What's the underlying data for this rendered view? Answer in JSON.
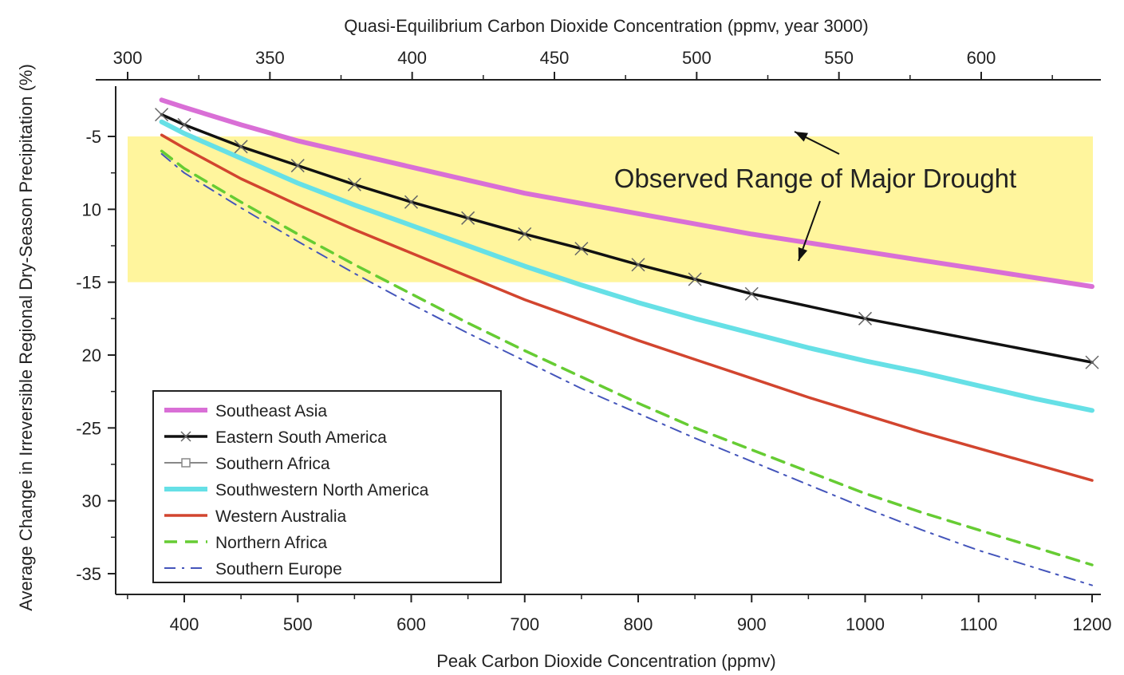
{
  "chart_data": {
    "type": "line",
    "xlabel_bottom": "Peak Carbon Dioxide Concentration (ppmv)",
    "xlabel_top": "Quasi-Equilibrium Carbon Dioxide Concentration (ppmv, year 3000)",
    "ylabel": "Average Change in Irreversible Regional Dry-Season Precipitation (%)",
    "xlim": [
      350,
      1200
    ],
    "ylim": [
      -37,
      -1.5
    ],
    "x_ticks": [
      400,
      500,
      600,
      700,
      800,
      900,
      1000,
      1100,
      1200
    ],
    "x_tick_labels": [
      "400",
      "500",
      "600",
      "700",
      "800",
      "900",
      "1000",
      "1100",
      "1200"
    ],
    "top_axis": {
      "range": [
        300,
        640
      ],
      "ticks": [
        300,
        350,
        400,
        450,
        500,
        550,
        600
      ],
      "tick_labels": [
        "300",
        "350",
        "400",
        "450",
        "500",
        "550",
        "600"
      ]
    },
    "y_ticks": [
      -5,
      -10,
      -15,
      -20,
      -25,
      -30,
      -35
    ],
    "y_tick_labels": [
      "-5",
      "10",
      "-15",
      "20",
      "-25",
      "30",
      "-35"
    ],
    "grid": false,
    "band": {
      "y_range": [
        -15,
        -5
      ],
      "color": "#fff59d",
      "label": "Observed Range of Major Drought"
    },
    "legend_position": "bottom-left",
    "series": [
      {
        "name": "Southeast Asia",
        "color": "#d96fd6",
        "style": "solid",
        "width": "thick",
        "marker": "none",
        "x": [
          380,
          400,
          450,
          500,
          550,
          600,
          650,
          700,
          750,
          800,
          850,
          900,
          950,
          1000,
          1050,
          1100,
          1150,
          1200
        ],
        "y": [
          -2.5,
          -3.0,
          -4.2,
          -5.3,
          -6.2,
          -7.1,
          -8.0,
          -8.9,
          -9.6,
          -10.3,
          -11.0,
          -11.7,
          -12.3,
          -12.9,
          -13.5,
          -14.1,
          -14.7,
          -15.3
        ]
      },
      {
        "name": "Eastern South America",
        "color": "#111111",
        "style": "solid",
        "width": "medium",
        "marker": "x",
        "x": [
          380,
          400,
          450,
          500,
          550,
          600,
          650,
          700,
          750,
          800,
          850,
          900,
          1000,
          1200
        ],
        "y": [
          -3.5,
          -4.2,
          -5.7,
          -7.0,
          -8.3,
          -9.5,
          -10.6,
          -11.7,
          -12.7,
          -13.8,
          -14.8,
          -15.8,
          -17.5,
          -20.5
        ]
      },
      {
        "name": "Southern Africa",
        "color": "#888888",
        "style": "solid",
        "width": "thin",
        "marker": "square",
        "x": [],
        "y": []
      },
      {
        "name": "Southwestern North America",
        "color": "#66e0e6",
        "style": "solid",
        "width": "thick",
        "marker": "none",
        "x": [
          380,
          400,
          450,
          500,
          550,
          600,
          650,
          700,
          750,
          800,
          850,
          900,
          950,
          1000,
          1050,
          1100,
          1150,
          1200
        ],
        "y": [
          -4.0,
          -4.8,
          -6.5,
          -8.2,
          -9.7,
          -11.1,
          -12.5,
          -13.9,
          -15.2,
          -16.4,
          -17.5,
          -18.5,
          -19.5,
          -20.4,
          -21.2,
          -22.1,
          -23.0,
          -23.8
        ]
      },
      {
        "name": "Western Australia",
        "color": "#d2452f",
        "style": "solid",
        "width": "medium",
        "marker": "none",
        "x": [
          380,
          400,
          450,
          500,
          550,
          600,
          650,
          700,
          750,
          800,
          850,
          900,
          950,
          1000,
          1050,
          1100,
          1150,
          1200
        ],
        "y": [
          -4.9,
          -5.8,
          -7.9,
          -9.7,
          -11.4,
          -13.0,
          -14.6,
          -16.2,
          -17.6,
          -19.0,
          -20.3,
          -21.6,
          -22.9,
          -24.1,
          -25.3,
          -26.4,
          -27.5,
          -28.6
        ]
      },
      {
        "name": "Northern Africa",
        "color": "#66cc33",
        "style": "dashed",
        "width": "medium",
        "marker": "none",
        "x": [
          380,
          400,
          450,
          500,
          550,
          600,
          650,
          700,
          750,
          800,
          850,
          900,
          950,
          1000,
          1050,
          1100,
          1150,
          1200
        ],
        "y": [
          -6.0,
          -7.2,
          -9.5,
          -11.7,
          -13.8,
          -15.8,
          -17.8,
          -19.7,
          -21.5,
          -23.3,
          -25.0,
          -26.5,
          -28.0,
          -29.5,
          -30.8,
          -32.0,
          -33.2,
          -34.4
        ]
      },
      {
        "name": "Southern Europe",
        "color": "#4455bb",
        "style": "dashdot",
        "width": "thin",
        "marker": "none",
        "x": [
          380,
          400,
          450,
          500,
          550,
          600,
          650,
          700,
          750,
          800,
          850,
          900,
          950,
          1000,
          1050,
          1100,
          1150,
          1200
        ],
        "y": [
          -6.2,
          -7.5,
          -9.9,
          -12.2,
          -14.4,
          -16.5,
          -18.5,
          -20.4,
          -22.3,
          -24.0,
          -25.7,
          -27.3,
          -28.9,
          -30.5,
          -32.0,
          -33.4,
          -34.6,
          -35.8
        ]
      }
    ]
  }
}
